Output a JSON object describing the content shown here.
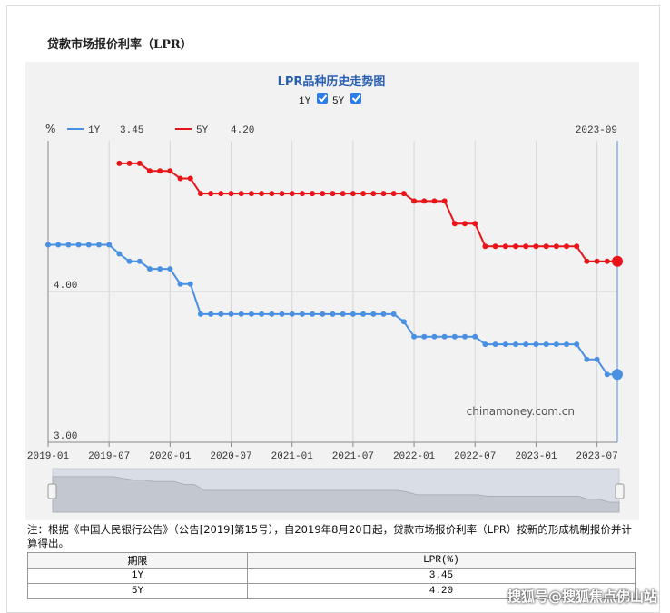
{
  "panel": {
    "title": "贷款市场报价利率（LPR）"
  },
  "chart_data": {
    "type": "line",
    "title": "LPR品种历史走势图",
    "toggles": [
      {
        "label": "1Y",
        "checked": true
      },
      {
        "label": "5Y",
        "checked": true
      }
    ],
    "legend": [
      {
        "name": "1Y",
        "value": "3.45",
        "color": "#4a90e2"
      },
      {
        "name": "5Y",
        "value": "4.20",
        "color": "#e8141a"
      }
    ],
    "current_period": "2023-09",
    "ylabel": "%",
    "yticks": [
      {
        "value": 3.0,
        "label": "3.00"
      },
      {
        "value": 4.0,
        "label": "4.00"
      }
    ],
    "ylim": [
      3.0,
      5.0
    ],
    "xticks": [
      "2019-01",
      "2019-07",
      "2020-01",
      "2020-07",
      "2021-01",
      "2021-07",
      "2022-01",
      "2022-07",
      "2023-01",
      "2023-07"
    ],
    "x_start": "2019-01",
    "x_end": "2023-09",
    "source_label": "chinamoney.com.cn",
    "series": [
      {
        "name": "1Y",
        "color": "#4a90e2",
        "points": [
          [
            "2019-01",
            4.31
          ],
          [
            "2019-02",
            4.31
          ],
          [
            "2019-03",
            4.31
          ],
          [
            "2019-04",
            4.31
          ],
          [
            "2019-05",
            4.31
          ],
          [
            "2019-06",
            4.31
          ],
          [
            "2019-07",
            4.31
          ],
          [
            "2019-08",
            4.25
          ],
          [
            "2019-09",
            4.2
          ],
          [
            "2019-10",
            4.2
          ],
          [
            "2019-11",
            4.15
          ],
          [
            "2019-12",
            4.15
          ],
          [
            "2020-01",
            4.15
          ],
          [
            "2020-02",
            4.05
          ],
          [
            "2020-03",
            4.05
          ],
          [
            "2020-04",
            3.85
          ],
          [
            "2020-05",
            3.85
          ],
          [
            "2020-06",
            3.85
          ],
          [
            "2020-07",
            3.85
          ],
          [
            "2020-08",
            3.85
          ],
          [
            "2020-09",
            3.85
          ],
          [
            "2020-10",
            3.85
          ],
          [
            "2020-11",
            3.85
          ],
          [
            "2020-12",
            3.85
          ],
          [
            "2021-01",
            3.85
          ],
          [
            "2021-02",
            3.85
          ],
          [
            "2021-03",
            3.85
          ],
          [
            "2021-04",
            3.85
          ],
          [
            "2021-05",
            3.85
          ],
          [
            "2021-06",
            3.85
          ],
          [
            "2021-07",
            3.85
          ],
          [
            "2021-08",
            3.85
          ],
          [
            "2021-09",
            3.85
          ],
          [
            "2021-10",
            3.85
          ],
          [
            "2021-11",
            3.85
          ],
          [
            "2021-12",
            3.8
          ],
          [
            "2022-01",
            3.7
          ],
          [
            "2022-02",
            3.7
          ],
          [
            "2022-03",
            3.7
          ],
          [
            "2022-04",
            3.7
          ],
          [
            "2022-05",
            3.7
          ],
          [
            "2022-06",
            3.7
          ],
          [
            "2022-07",
            3.7
          ],
          [
            "2022-08",
            3.65
          ],
          [
            "2022-09",
            3.65
          ],
          [
            "2022-10",
            3.65
          ],
          [
            "2022-11",
            3.65
          ],
          [
            "2022-12",
            3.65
          ],
          [
            "2023-01",
            3.65
          ],
          [
            "2023-02",
            3.65
          ],
          [
            "2023-03",
            3.65
          ],
          [
            "2023-04",
            3.65
          ],
          [
            "2023-05",
            3.65
          ],
          [
            "2023-06",
            3.55
          ],
          [
            "2023-07",
            3.55
          ],
          [
            "2023-08",
            3.45
          ],
          [
            "2023-09",
            3.45
          ]
        ]
      },
      {
        "name": "5Y",
        "color": "#e8141a",
        "points": [
          [
            "2019-08",
            4.85
          ],
          [
            "2019-09",
            4.85
          ],
          [
            "2019-10",
            4.85
          ],
          [
            "2019-11",
            4.8
          ],
          [
            "2019-12",
            4.8
          ],
          [
            "2020-01",
            4.8
          ],
          [
            "2020-02",
            4.75
          ],
          [
            "2020-03",
            4.75
          ],
          [
            "2020-04",
            4.65
          ],
          [
            "2020-05",
            4.65
          ],
          [
            "2020-06",
            4.65
          ],
          [
            "2020-07",
            4.65
          ],
          [
            "2020-08",
            4.65
          ],
          [
            "2020-09",
            4.65
          ],
          [
            "2020-10",
            4.65
          ],
          [
            "2020-11",
            4.65
          ],
          [
            "2020-12",
            4.65
          ],
          [
            "2021-01",
            4.65
          ],
          [
            "2021-02",
            4.65
          ],
          [
            "2021-03",
            4.65
          ],
          [
            "2021-04",
            4.65
          ],
          [
            "2021-05",
            4.65
          ],
          [
            "2021-06",
            4.65
          ],
          [
            "2021-07",
            4.65
          ],
          [
            "2021-08",
            4.65
          ],
          [
            "2021-09",
            4.65
          ],
          [
            "2021-10",
            4.65
          ],
          [
            "2021-11",
            4.65
          ],
          [
            "2021-12",
            4.65
          ],
          [
            "2022-01",
            4.6
          ],
          [
            "2022-02",
            4.6
          ],
          [
            "2022-03",
            4.6
          ],
          [
            "2022-04",
            4.6
          ],
          [
            "2022-05",
            4.45
          ],
          [
            "2022-06",
            4.45
          ],
          [
            "2022-07",
            4.45
          ],
          [
            "2022-08",
            4.3
          ],
          [
            "2022-09",
            4.3
          ],
          [
            "2022-10",
            4.3
          ],
          [
            "2022-11",
            4.3
          ],
          [
            "2022-12",
            4.3
          ],
          [
            "2023-01",
            4.3
          ],
          [
            "2023-02",
            4.3
          ],
          [
            "2023-03",
            4.3
          ],
          [
            "2023-04",
            4.3
          ],
          [
            "2023-05",
            4.3
          ],
          [
            "2023-06",
            4.2
          ],
          [
            "2023-07",
            4.2
          ],
          [
            "2023-08",
            4.2
          ],
          [
            "2023-09",
            4.2
          ]
        ]
      }
    ]
  },
  "note": "注：根据《中国人民银行公告》（公告[2019]第15号），自2019年8月20日起，贷款市场报价利率（LPR）按新的形成机制报价并计算得出。",
  "table": {
    "headers": [
      "期限",
      "LPR(%)"
    ],
    "rows": [
      [
        "1Y",
        "3.45"
      ],
      [
        "5Y",
        "4.20"
      ]
    ]
  },
  "watermark": "搜狐号@搜狐焦点佛山站"
}
